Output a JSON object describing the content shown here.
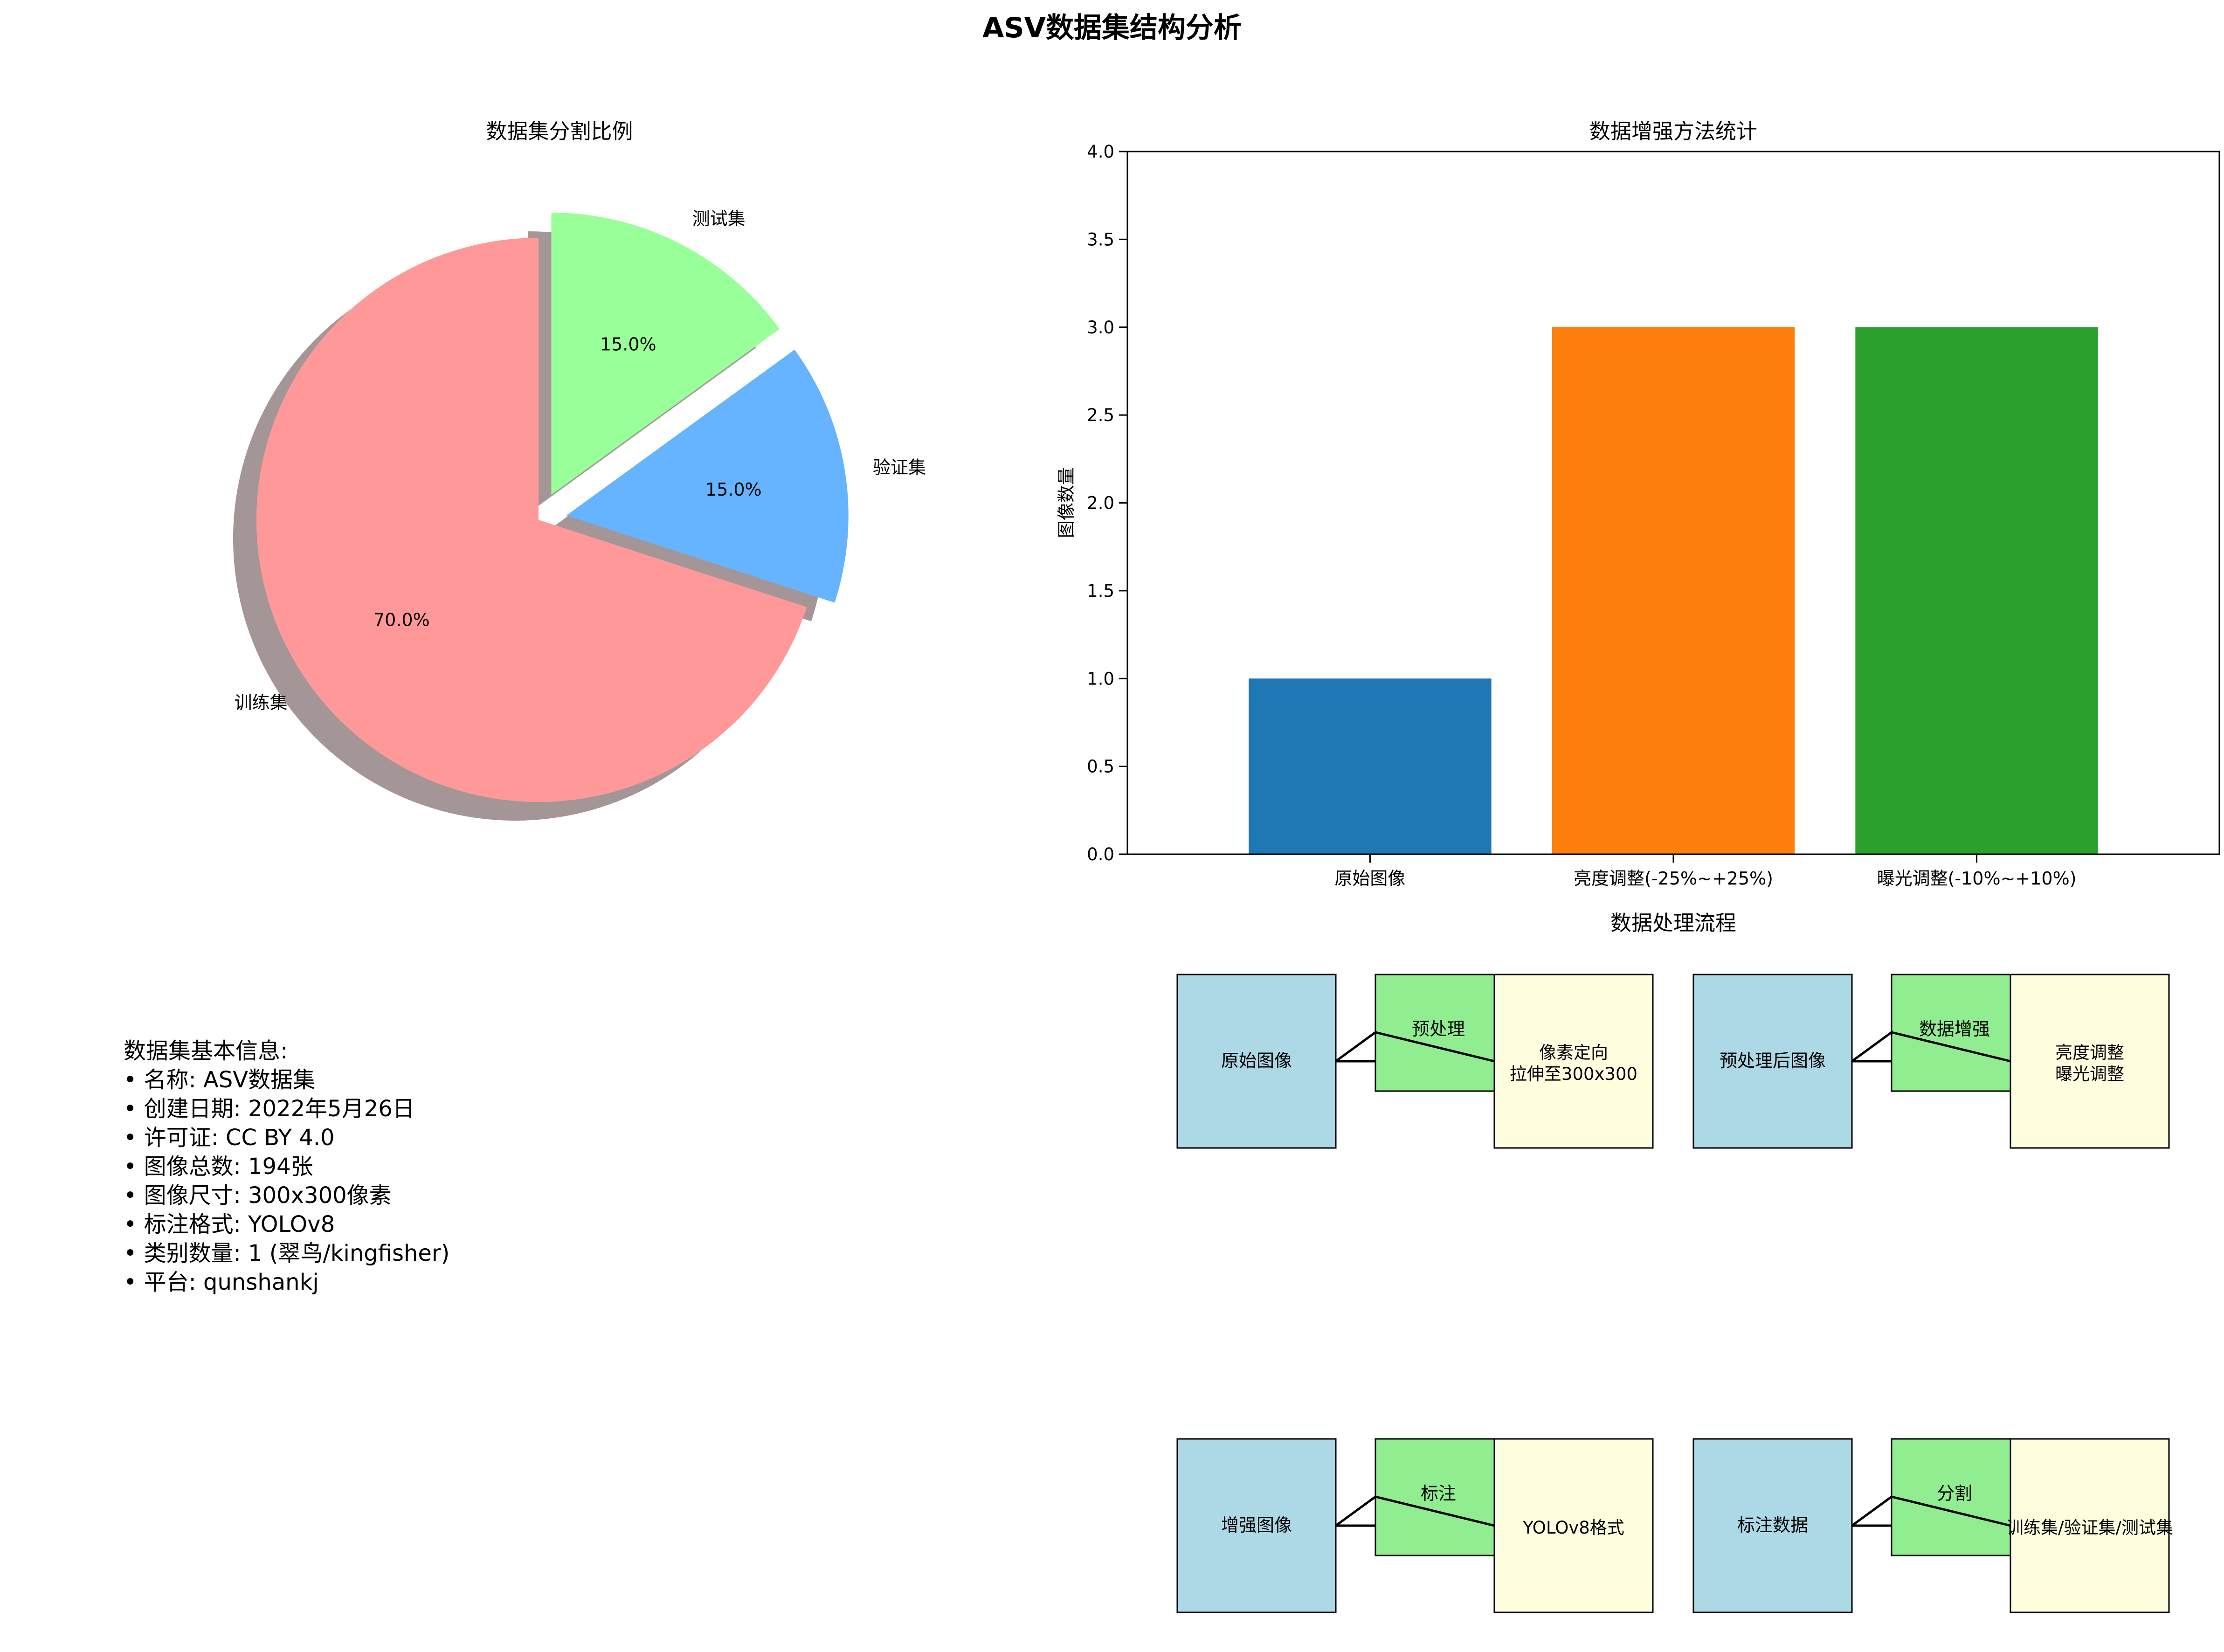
{
  "title": "ASV数据集结构分析",
  "chart_data": [
    {
      "type": "pie",
      "title": "数据集分割比例",
      "start_angle_deg": 90,
      "shadow": true,
      "slices": [
        {
          "label": "训练集",
          "value": 70,
          "pct_label": "70.0%",
          "color": "#ff9999",
          "explode": 0
        },
        {
          "label": "验证集",
          "value": 15,
          "pct_label": "15.0%",
          "color": "#66b3ff",
          "explode": 0.1
        },
        {
          "label": "测试集",
          "value": 15,
          "pct_label": "15.0%",
          "color": "#99ff99",
          "explode": 0.1
        }
      ]
    },
    {
      "type": "bar",
      "title": "数据增强方法统计",
      "xlabel": "",
      "ylabel": "图像数量",
      "categories": [
        "原始图像",
        "亮度调整(-25%~+25%)",
        "曝光调整(-10%~+10%)"
      ],
      "values": [
        1,
        3,
        3
      ],
      "colors": [
        "#1f77b4",
        "#ff7f0e",
        "#2ca02c"
      ],
      "ylim": [
        0,
        4.0
      ],
      "yticks": [
        "0.0",
        "0.5",
        "1.0",
        "1.5",
        "2.0",
        "2.5",
        "3.0",
        "3.5",
        "4.0"
      ],
      "grid": false
    }
  ],
  "info": {
    "heading": "数据集基本信息:",
    "lines": [
      "• 名称: ASV数据集",
      "• 创建日期: 2022年5月26日",
      "• 许可证: CC BY 4.0",
      "• 图像总数: 194张",
      "• 图像尺寸: 300x300像素",
      "• 标注格式: YOLOv8",
      "• 类别数量: 1 (翠鸟/kingfisher)",
      "• 平台: qunshankj"
    ]
  },
  "flow": {
    "title": "数据处理流程",
    "colors": {
      "source": "#add8e6",
      "step": "#90ee90",
      "result": "#ffffe0"
    },
    "stages": [
      {
        "source": "原始图像",
        "step": "预处理",
        "result": [
          "像素定向",
          "拉伸至300x300"
        ]
      },
      {
        "source": "预处理后图像",
        "step": "数据增强",
        "result": [
          "亮度调整",
          "曝光调整"
        ]
      },
      {
        "source": "增强图像",
        "step": "标注",
        "result": [
          "YOLOv8格式"
        ]
      },
      {
        "source": "标注数据",
        "step": "分割",
        "result": [
          "训练集/验证集/测试集"
        ]
      }
    ]
  }
}
